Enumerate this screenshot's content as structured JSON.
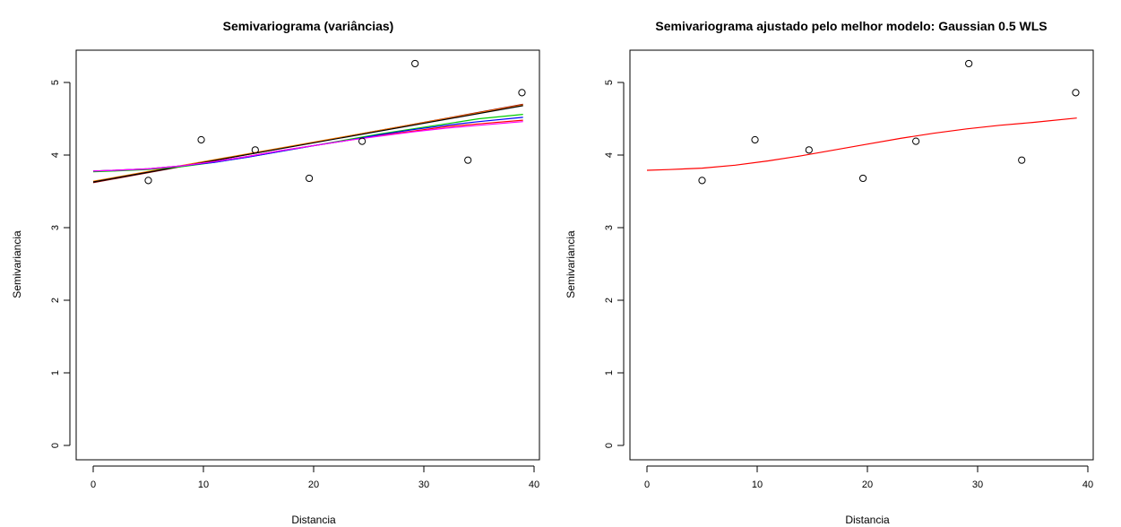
{
  "chart_data": [
    {
      "type": "scatter",
      "title": "Semivariograma (variâncias)",
      "xlabel": "Distancia",
      "ylabel": "Semivariancia",
      "xlim": [
        0,
        40
      ],
      "ylim": [
        0,
        5.4
      ],
      "xticks": [
        0,
        10,
        20,
        30,
        40
      ],
      "yticks": [
        0,
        1,
        2,
        3,
        4,
        5
      ],
      "points": {
        "x": [
          5.0,
          9.8,
          14.7,
          19.6,
          24.4,
          29.2,
          34.0,
          38.9
        ],
        "y": [
          3.65,
          4.21,
          4.07,
          3.68,
          4.19,
          5.26,
          3.93,
          4.86
        ]
      },
      "grid": false,
      "series": [
        {
          "color": "#8B0000",
          "x": [
            0,
            39
          ],
          "y": [
            3.62,
            4.7
          ]
        },
        {
          "color": "#ff7f00",
          "x": [
            0,
            39
          ],
          "y": [
            3.64,
            4.69
          ]
        },
        {
          "color": "#000000",
          "x": [
            0,
            39
          ],
          "y": [
            3.63,
            4.68
          ]
        },
        {
          "color": "#ff0000",
          "x": [
            0,
            2,
            5,
            8,
            11,
            14,
            17,
            20,
            23,
            26,
            29,
            32,
            35,
            39
          ],
          "y": [
            3.78,
            3.79,
            3.81,
            3.85,
            3.91,
            3.98,
            4.06,
            4.13,
            4.2,
            4.27,
            4.33,
            4.39,
            4.43,
            4.48
          ]
        },
        {
          "color": "#00cc00",
          "x": [
            0,
            2,
            5,
            8,
            11,
            14,
            17,
            20,
            23,
            26,
            29,
            32,
            35,
            39
          ],
          "y": [
            3.77,
            3.78,
            3.8,
            3.84,
            3.9,
            3.97,
            4.05,
            4.13,
            4.21,
            4.29,
            4.36,
            4.43,
            4.5,
            4.56
          ]
        },
        {
          "color": "#0000ff",
          "x": [
            0,
            2,
            5,
            8,
            11,
            14,
            17,
            20,
            23,
            26,
            29,
            32,
            35,
            39
          ],
          "y": [
            3.78,
            3.79,
            3.81,
            3.85,
            3.9,
            3.97,
            4.05,
            4.13,
            4.2,
            4.28,
            4.35,
            4.41,
            4.46,
            4.52
          ]
        },
        {
          "color": "#ff00ff",
          "x": [
            0,
            2,
            5,
            8,
            11,
            14,
            17,
            20,
            23,
            26,
            29,
            32,
            35,
            39
          ],
          "y": [
            3.78,
            3.79,
            3.81,
            3.85,
            3.91,
            3.98,
            4.06,
            4.13,
            4.2,
            4.26,
            4.32,
            4.37,
            4.41,
            4.46
          ]
        }
      ]
    },
    {
      "type": "scatter",
      "title": "Semivariograma ajustado pelo melhor modelo: Gaussian 0.5 WLS",
      "xlabel": "Distancia",
      "ylabel": "Semivariancia",
      "xlim": [
        0,
        40
      ],
      "ylim": [
        0,
        5.4
      ],
      "xticks": [
        0,
        10,
        20,
        30,
        40
      ],
      "yticks": [
        0,
        1,
        2,
        3,
        4,
        5
      ],
      "points": {
        "x": [
          5.0,
          9.8,
          14.7,
          19.6,
          24.4,
          29.2,
          34.0,
          38.9
        ],
        "y": [
          3.65,
          4.21,
          4.07,
          3.68,
          4.19,
          5.26,
          3.93,
          4.86
        ]
      },
      "grid": false,
      "series": [
        {
          "color": "#ff0000",
          "x": [
            0,
            2,
            5,
            8,
            11,
            14,
            17,
            20,
            23,
            26,
            29,
            32,
            35,
            39
          ],
          "y": [
            3.79,
            3.8,
            3.82,
            3.86,
            3.92,
            3.99,
            4.07,
            4.15,
            4.23,
            4.3,
            4.36,
            4.41,
            4.45,
            4.51
          ]
        }
      ]
    }
  ]
}
